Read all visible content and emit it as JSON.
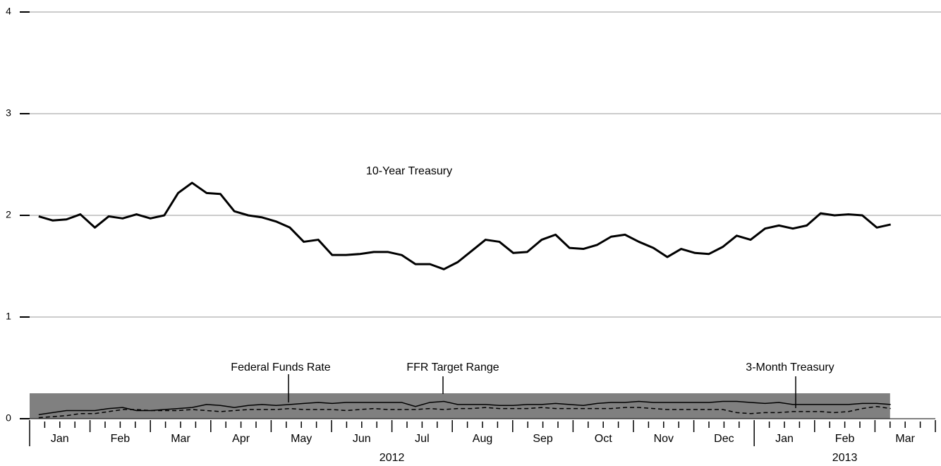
{
  "chart_data": {
    "type": "line",
    "x": [
      0.15,
      0.38,
      0.61,
      0.84,
      1.08,
      1.31,
      1.54,
      1.77,
      2.0,
      2.23,
      2.46,
      2.69,
      2.93,
      3.16,
      3.39,
      3.62,
      3.85,
      4.08,
      4.31,
      4.54,
      4.78,
      5.01,
      5.24,
      5.47,
      5.7,
      5.93,
      6.16,
      6.39,
      6.63,
      6.86,
      7.09,
      7.32,
      7.55,
      7.78,
      8.01,
      8.24,
      8.48,
      8.71,
      8.94,
      9.17,
      9.4,
      9.63,
      9.86,
      10.09,
      10.33,
      10.56,
      10.79,
      11.02,
      11.25,
      11.48,
      11.71,
      11.94,
      12.18,
      12.41,
      12.64,
      12.87,
      13.1,
      13.33,
      13.56,
      13.79,
      14.03,
      14.26
    ],
    "series": [
      {
        "name": "10-Year Treasury",
        "color": "#000000",
        "style": "solid",
        "width": 3,
        "values": [
          1.99,
          1.95,
          1.96,
          2.01,
          1.88,
          1.99,
          1.97,
          2.01,
          1.97,
          2.0,
          2.22,
          2.32,
          2.22,
          2.21,
          2.04,
          2.0,
          1.98,
          1.94,
          1.88,
          1.74,
          1.76,
          1.61,
          1.61,
          1.62,
          1.64,
          1.64,
          1.61,
          1.52,
          1.52,
          1.47,
          1.54,
          1.65,
          1.76,
          1.74,
          1.63,
          1.64,
          1.76,
          1.81,
          1.68,
          1.67,
          1.71,
          1.79,
          1.81,
          1.74,
          1.68,
          1.59,
          1.67,
          1.63,
          1.62,
          1.69,
          1.8,
          1.76,
          1.87,
          1.9,
          1.87,
          1.9,
          2.02,
          2.0,
          2.01,
          2.0,
          1.88,
          1.91
        ]
      },
      {
        "name": "Federal Funds Rate",
        "color": "#000000",
        "style": "solid",
        "width": 1.5,
        "values": [
          0.04,
          0.06,
          0.08,
          0.08,
          0.08,
          0.1,
          0.11,
          0.08,
          0.08,
          0.09,
          0.1,
          0.11,
          0.14,
          0.13,
          0.11,
          0.13,
          0.14,
          0.13,
          0.14,
          0.15,
          0.16,
          0.15,
          0.16,
          0.16,
          0.16,
          0.16,
          0.16,
          0.12,
          0.16,
          0.17,
          0.14,
          0.14,
          0.14,
          0.13,
          0.13,
          0.14,
          0.14,
          0.15,
          0.14,
          0.13,
          0.15,
          0.16,
          0.16,
          0.17,
          0.16,
          0.16,
          0.16,
          0.16,
          0.16,
          0.17,
          0.17,
          0.16,
          0.15,
          0.16,
          0.14,
          0.14,
          0.14,
          0.14,
          0.14,
          0.15,
          0.15,
          0.14
        ]
      },
      {
        "name": "3-Month Treasury",
        "color": "#000000",
        "style": "dashed",
        "width": 1.5,
        "values": [
          0.01,
          0.02,
          0.03,
          0.05,
          0.05,
          0.07,
          0.09,
          0.09,
          0.08,
          0.08,
          0.08,
          0.09,
          0.08,
          0.07,
          0.08,
          0.09,
          0.09,
          0.09,
          0.1,
          0.09,
          0.09,
          0.09,
          0.08,
          0.09,
          0.1,
          0.09,
          0.09,
          0.09,
          0.1,
          0.09,
          0.1,
          0.1,
          0.11,
          0.1,
          0.1,
          0.1,
          0.11,
          0.1,
          0.1,
          0.1,
          0.1,
          0.1,
          0.11,
          0.11,
          0.1,
          0.09,
          0.09,
          0.09,
          0.09,
          0.09,
          0.06,
          0.05,
          0.06,
          0.06,
          0.07,
          0.07,
          0.07,
          0.06,
          0.07,
          0.1,
          0.12,
          0.1
        ]
      }
    ],
    "target_range": {
      "name": "FFR Target Range",
      "color": "#808080",
      "x": [
        0,
        14.25
      ],
      "lower": [
        0,
        0
      ],
      "upper": [
        0.25,
        0.25
      ]
    },
    "xlim": [
      0,
      15
    ],
    "xticks": [
      {
        "value": 0.5,
        "label": "Jan"
      },
      {
        "value": 1.5,
        "label": "Feb"
      },
      {
        "value": 2.5,
        "label": "Mar"
      },
      {
        "value": 3.5,
        "label": "Apr"
      },
      {
        "value": 4.5,
        "label": "May"
      },
      {
        "value": 5.5,
        "label": "Jun"
      },
      {
        "value": 6.5,
        "label": "Jul"
      },
      {
        "value": 7.5,
        "label": "Aug"
      },
      {
        "value": 8.5,
        "label": "Sep"
      },
      {
        "value": 9.5,
        "label": "Oct"
      },
      {
        "value": 10.5,
        "label": "Nov"
      },
      {
        "value": 11.5,
        "label": "Dec"
      },
      {
        "value": 12.5,
        "label": "Jan"
      },
      {
        "value": 13.5,
        "label": "Feb"
      },
      {
        "value": 14.5,
        "label": "Mar"
      }
    ],
    "xticks_year": [
      {
        "value": 6,
        "label": "2012"
      },
      {
        "value": 13.5,
        "label": "2013"
      }
    ],
    "ylim": [
      0,
      4
    ],
    "yticks": [
      0,
      1,
      2,
      3,
      4
    ],
    "grid": true
  }
}
